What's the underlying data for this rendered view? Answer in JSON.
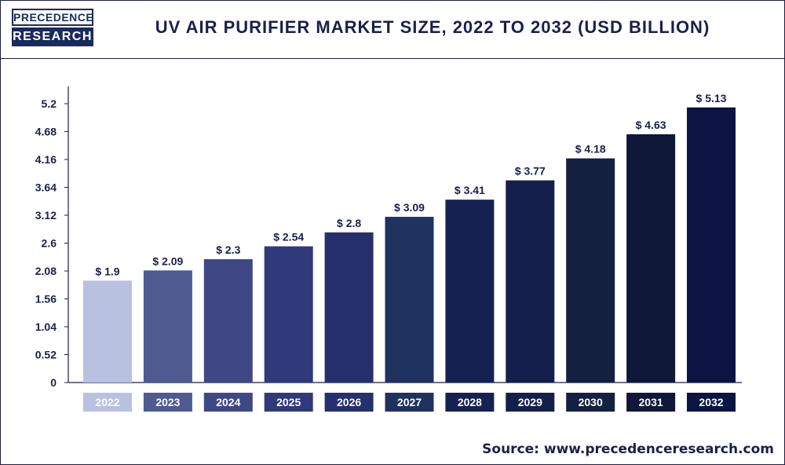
{
  "header": {
    "logo_top": "PRECEDENCE",
    "logo_bottom": "RESEARCH",
    "title": "UV AIR PURIFIER MARKET SIZE, 2022 TO 2032 (USD BILLION)"
  },
  "footer": {
    "source": "Source: www.precedenceresearch.com"
  },
  "colors": {
    "border": "#1b1f4a",
    "bars": [
      "#b8c1e0",
      "#4f5a90",
      "#3f4885",
      "#303a7a",
      "#26306e",
      "#1f3260",
      "#152251",
      "#141f4b",
      "#142040",
      "#0f1838",
      "#0b1442"
    ]
  },
  "chart_data": {
    "type": "bar",
    "title": "UV AIR PURIFIER MARKET SIZE, 2022 TO 2032 (USD BILLION)",
    "categories": [
      "2022",
      "2023",
      "2024",
      "2025",
      "2026",
      "2027",
      "2028",
      "2029",
      "2030",
      "2031",
      "2032"
    ],
    "values": [
      1.9,
      2.09,
      2.3,
      2.54,
      2.8,
      3.09,
      3.41,
      3.77,
      4.18,
      4.63,
      5.13
    ],
    "value_labels": [
      "$ 1.9",
      "$ 2.09",
      "$ 2.3",
      "$ 2.54",
      "$ 2.8",
      "$ 3.09",
      "$ 3.41",
      "$ 3.77",
      "$ 4.18",
      "$ 4.63",
      "$ 5.13"
    ],
    "yticks": [
      0,
      0.52,
      1.04,
      1.56,
      2.08,
      2.6,
      3.12,
      3.64,
      4.16,
      4.68,
      5.2
    ],
    "ytick_labels": [
      "0",
      "0.52",
      "1.04",
      "1.56",
      "2.08",
      "2.6",
      "3.12",
      "3.64",
      "4.16",
      "4.68",
      "5.2"
    ],
    "ylim": [
      0,
      5.2
    ],
    "grid": false,
    "xlabel": "",
    "ylabel": ""
  }
}
